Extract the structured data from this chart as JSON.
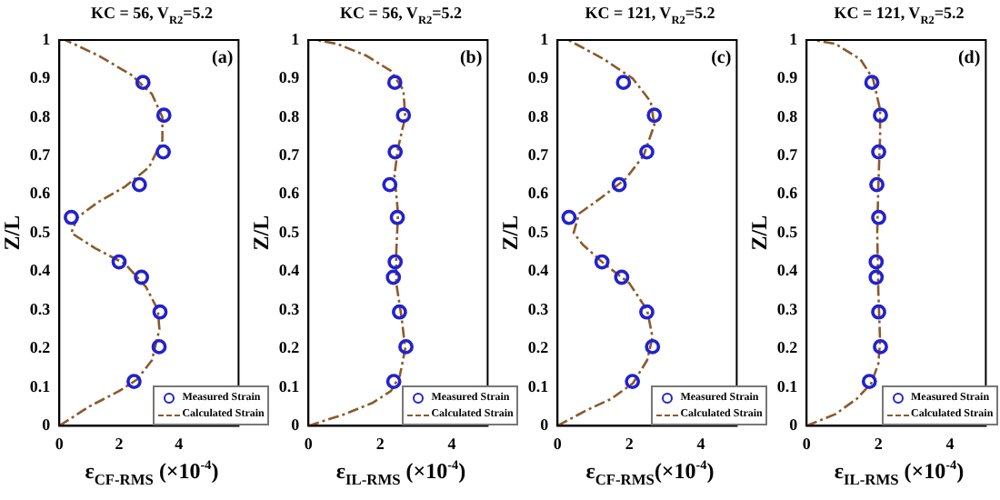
{
  "chart_data": [
    {
      "type": "line",
      "title": "KC = 56, V$_{R2}$=5.2",
      "xlabel": "ε$_{CF-RMS}$  (×10$^{-4}$)",
      "ylabel": "Z/L",
      "annotations": [
        "(a)"
      ],
      "xlim": [
        0,
        6
      ],
      "xticks": [
        0,
        2,
        4
      ],
      "ylim": [
        0,
        1
      ],
      "yticks": [
        0,
        0.1,
        0.2,
        0.3,
        0.4,
        0.5,
        0.6,
        0.7,
        0.8,
        0.9,
        1
      ],
      "grid": false,
      "legend": "bottom right",
      "series": [
        {
          "name": "Measured Strain",
          "type": "scatter",
          "marker": "circle",
          "color": "#2222cc",
          "x": [
            2.5,
            3.34,
            3.37,
            2.75,
            2.0,
            0.4,
            2.68,
            3.48,
            3.5,
            2.8
          ],
          "values": [
            0.115,
            0.205,
            0.295,
            0.385,
            0.425,
            0.54,
            0.625,
            0.71,
            0.805,
            0.89
          ]
        },
        {
          "name": "Calculated Strain",
          "type": "line",
          "line_style": "dashed",
          "color": "#8b5a2b",
          "x": [
            0,
            1.0,
            2.0,
            2.6,
            3.1,
            3.35,
            3.3,
            2.9,
            2.2,
            1.2,
            0.4,
            0.6,
            1.3,
            2.2,
            3.0,
            3.45,
            3.45,
            3.1,
            2.4,
            1.3,
            0.2
          ],
          "values": [
            0,
            0.05,
            0.09,
            0.12,
            0.17,
            0.25,
            0.3,
            0.36,
            0.42,
            0.46,
            0.5,
            0.54,
            0.58,
            0.62,
            0.67,
            0.74,
            0.8,
            0.86,
            0.91,
            0.96,
            1.0
          ]
        }
      ]
    },
    {
      "type": "line",
      "title": "KC = 56, V$_{R2}$=5.2",
      "xlabel": "ε$_{IL-RMS}$ (×10$^{-4}$)",
      "ylabel": "Z/L",
      "annotations": [
        "(b)"
      ],
      "xlim": [
        0,
        5
      ],
      "xticks": [
        0,
        2,
        4
      ],
      "ylim": [
        0,
        1
      ],
      "yticks": [
        0,
        0.1,
        0.2,
        0.3,
        0.4,
        0.5,
        0.6,
        0.7,
        0.8,
        0.9,
        1
      ],
      "grid": false,
      "legend": "bottom right",
      "series": [
        {
          "name": "Measured Strain",
          "type": "scatter",
          "marker": "circle",
          "color": "#2222cc",
          "x": [
            2.38,
            2.72,
            2.54,
            2.37,
            2.42,
            2.48,
            2.27,
            2.42,
            2.65,
            2.41
          ],
          "values": [
            0.115,
            0.205,
            0.295,
            0.385,
            0.425,
            0.54,
            0.625,
            0.71,
            0.805,
            0.89
          ]
        },
        {
          "name": "Calculated Strain",
          "type": "line",
          "line_style": "dashed",
          "color": "#8b5a2b",
          "x": [
            0,
            1.0,
            1.8,
            2.3,
            2.55,
            2.7,
            2.6,
            2.45,
            2.45,
            2.5,
            2.4,
            2.5,
            2.7,
            2.65,
            2.3,
            1.6,
            0.8,
            0.2
          ],
          "values": [
            0,
            0.03,
            0.06,
            0.09,
            0.13,
            0.2,
            0.28,
            0.37,
            0.45,
            0.55,
            0.65,
            0.72,
            0.8,
            0.87,
            0.92,
            0.96,
            0.99,
            1.0
          ]
        }
      ]
    },
    {
      "type": "line",
      "title": "KC = 121, V$_{R2}$=5.2",
      "xlabel": "ε$_{CF-RMS}$(×10$^{-4}$)",
      "ylabel": "Z/L",
      "annotations": [
        "(c)"
      ],
      "xlim": [
        0,
        5
      ],
      "xticks": [
        0,
        2,
        4
      ],
      "ylim": [
        0,
        1
      ],
      "yticks": [
        0,
        0.1,
        0.2,
        0.3,
        0.4,
        0.5,
        0.6,
        0.7,
        0.8,
        0.9,
        1
      ],
      "grid": false,
      "legend": "bottom right",
      "series": [
        {
          "name": "Measured Strain",
          "type": "scatter",
          "marker": "circle",
          "color": "#2222cc",
          "x": [
            2.09,
            2.65,
            2.49,
            1.79,
            1.24,
            0.32,
            1.72,
            2.49,
            2.7,
            1.84
          ],
          "values": [
            0.115,
            0.205,
            0.295,
            0.385,
            0.425,
            0.54,
            0.625,
            0.71,
            0.805,
            0.89
          ]
        },
        {
          "name": "Calculated Strain",
          "type": "line",
          "line_style": "dashed",
          "color": "#8b5a2b",
          "x": [
            0,
            0.8,
            1.5,
            2.1,
            2.5,
            2.65,
            2.5,
            2.0,
            1.3,
            0.7,
            0.45,
            0.6,
            1.2,
            1.9,
            2.4,
            2.7,
            2.6,
            2.1,
            1.3,
            0.3
          ],
          "values": [
            0,
            0.04,
            0.07,
            0.11,
            0.17,
            0.23,
            0.3,
            0.37,
            0.42,
            0.47,
            0.5,
            0.55,
            0.59,
            0.64,
            0.7,
            0.78,
            0.84,
            0.9,
            0.95,
            1.0
          ]
        }
      ]
    },
    {
      "type": "line",
      "title": "KC = 121, V$_{R2}$=5.2",
      "xlabel": "ε$_{IL-RMS}$ (×10$^{-4}$)",
      "ylabel": "Z/L",
      "annotations": [
        "(d)"
      ],
      "xlim": [
        0,
        5
      ],
      "xticks": [
        0,
        2,
        4
      ],
      "ylim": [
        0,
        1
      ],
      "yticks": [
        0,
        0.1,
        0.2,
        0.3,
        0.4,
        0.5,
        0.6,
        0.7,
        0.8,
        0.9,
        1
      ],
      "grid": false,
      "legend": "bottom right",
      "series": [
        {
          "name": "Measured Strain",
          "type": "scatter",
          "marker": "circle",
          "color": "#2222cc",
          "x": [
            1.75,
            2.06,
            2.01,
            1.94,
            1.94,
            2.01,
            1.96,
            2.01,
            2.06,
            1.82
          ],
          "values": [
            0.115,
            0.205,
            0.295,
            0.385,
            0.425,
            0.54,
            0.625,
            0.71,
            0.805,
            0.89
          ]
        },
        {
          "name": "Calculated Strain",
          "type": "line",
          "line_style": "dashed",
          "color": "#8b5a2b",
          "x": [
            0,
            0.8,
            1.4,
            1.8,
            2.0,
            2.05,
            2.0,
            1.97,
            2.0,
            2.05,
            2.05,
            1.85,
            1.5,
            0.8,
            0.2
          ],
          "values": [
            0,
            0.03,
            0.07,
            0.11,
            0.16,
            0.22,
            0.35,
            0.5,
            0.62,
            0.75,
            0.82,
            0.9,
            0.95,
            0.99,
            1.0
          ]
        }
      ]
    }
  ]
}
